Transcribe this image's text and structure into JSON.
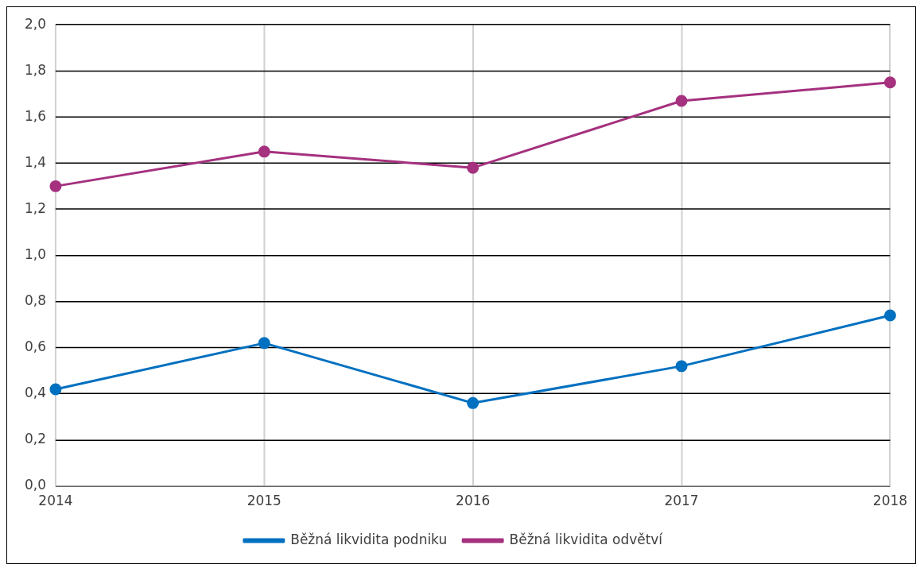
{
  "chart_data": {
    "type": "line",
    "categories": [
      "2014",
      "2015",
      "2016",
      "2017",
      "2018"
    ],
    "series": [
      {
        "name": "Běžná likvidita podniku",
        "color": "#0070c0",
        "values": [
          0.42,
          0.62,
          0.36,
          0.52,
          0.74
        ]
      },
      {
        "name": "Běžná likvidita odvětví",
        "color": "#a5317f",
        "values": [
          1.3,
          1.45,
          1.38,
          1.67,
          1.75
        ]
      }
    ],
    "ylim": [
      0,
      2
    ],
    "yticks": [
      {
        "value": 0,
        "label": "0,0"
      },
      {
        "value": 0.2,
        "label": "0,2"
      },
      {
        "value": 0.4,
        "label": "0,4"
      },
      {
        "value": 0.6,
        "label": "0,6"
      },
      {
        "value": 0.8,
        "label": "0,8"
      },
      {
        "value": 1.0,
        "label": "1,0"
      },
      {
        "value": 1.2,
        "label": "1,2"
      },
      {
        "value": 1.4,
        "label": "1,4"
      },
      {
        "value": 1.6,
        "label": "1,6"
      },
      {
        "value": 1.8,
        "label": "1,8"
      },
      {
        "value": 2.0,
        "label": "2,0"
      }
    ],
    "grid": true,
    "legend": "bottom",
    "marker": "circle",
    "line_style": "solid"
  }
}
